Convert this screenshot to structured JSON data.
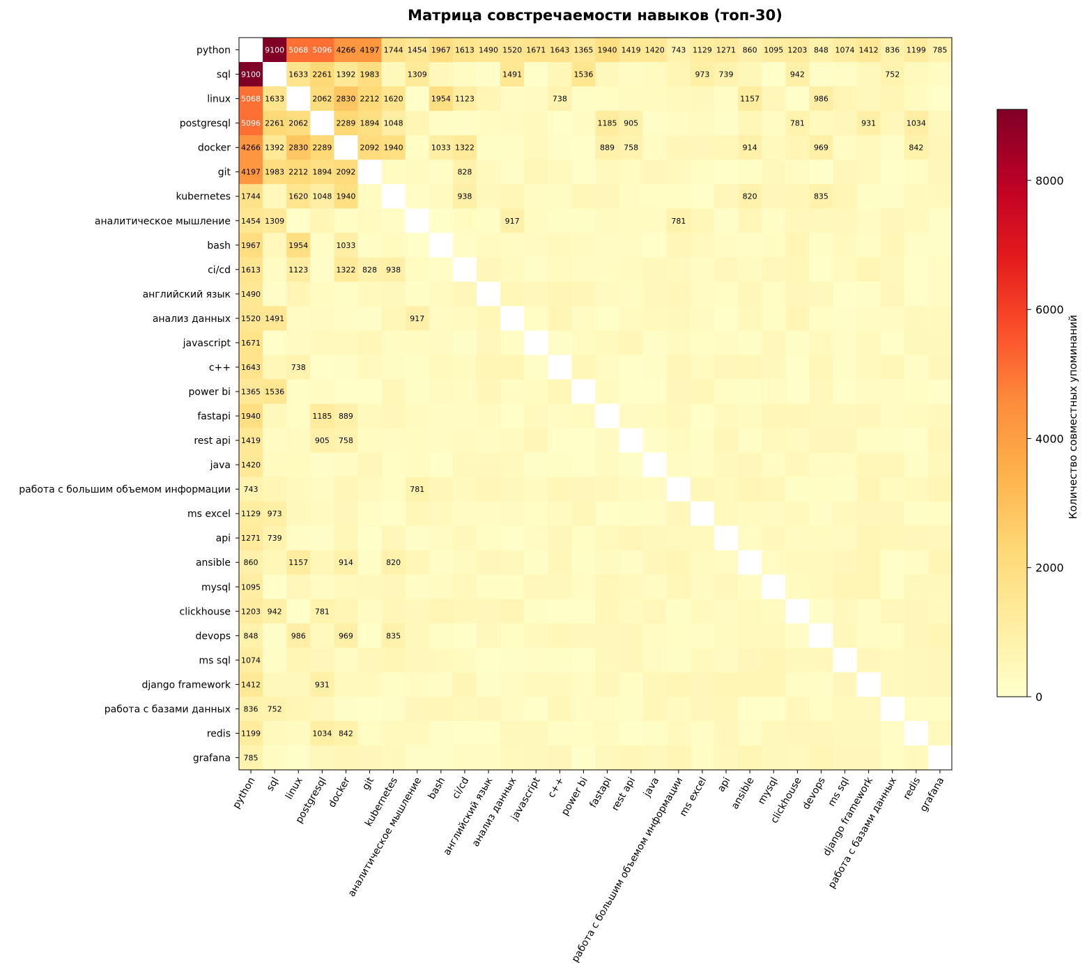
{
  "chart_data": {
    "type": "heatmap",
    "title": "Матрица совстречаемости навыков (топ-30)",
    "colorbar_label": "Количество совместных упоминаний",
    "colorbar_ticks": [
      0,
      2000,
      4000,
      6000,
      8000
    ],
    "colorbar_range": [
      0,
      9100
    ],
    "colormap": "YlOrRd",
    "diagonal": "blank",
    "labels": [
      "python",
      "sql",
      "linux",
      "postgresql",
      "docker",
      "git",
      "kubernetes",
      "аналитическое мышление",
      "bash",
      "ci/cd",
      "английский язык",
      "анализ данных",
      "javascript",
      "c++",
      "power bi",
      "fastapi",
      "rest api",
      "java",
      "работа с большим объемом информации",
      "ms excel",
      "api",
      "ansible",
      "mysql",
      "clickhouse",
      "devops",
      "ms sql",
      "django framework",
      "работа с базами данных",
      "redis",
      "grafana"
    ],
    "python_row": [
      null,
      9100,
      5068,
      5096,
      4266,
      4197,
      1744,
      1454,
      1967,
      1613,
      1490,
      1520,
      1671,
      1643,
      1365,
      1940,
      1419,
      1420,
      743,
      1129,
      1271,
      860,
      1095,
      1203,
      848,
      1074,
      1412,
      836,
      1199,
      785
    ],
    "pairs": [
      [
        1,
        2,
        1633
      ],
      [
        1,
        3,
        2261
      ],
      [
        1,
        4,
        1392
      ],
      [
        1,
        5,
        1983
      ],
      [
        1,
        7,
        1309
      ],
      [
        1,
        11,
        1491
      ],
      [
        1,
        14,
        1536
      ],
      [
        1,
        19,
        973
      ],
      [
        1,
        20,
        739
      ],
      [
        1,
        23,
        942
      ],
      [
        1,
        27,
        752
      ],
      [
        2,
        3,
        2062
      ],
      [
        2,
        4,
        2830
      ],
      [
        2,
        5,
        2212
      ],
      [
        2,
        6,
        1620
      ],
      [
        2,
        8,
        1954
      ],
      [
        2,
        9,
        1123
      ],
      [
        2,
        13,
        738
      ],
      [
        2,
        21,
        1157
      ],
      [
        2,
        24,
        986
      ],
      [
        3,
        4,
        2289
      ],
      [
        3,
        5,
        1894
      ],
      [
        3,
        6,
        1048
      ],
      [
        3,
        15,
        1185
      ],
      [
        3,
        16,
        905
      ],
      [
        3,
        23,
        781
      ],
      [
        3,
        26,
        931
      ],
      [
        3,
        28,
        1034
      ],
      [
        4,
        5,
        2092
      ],
      [
        4,
        6,
        1940
      ],
      [
        4,
        8,
        1033
      ],
      [
        4,
        9,
        1322
      ],
      [
        4,
        15,
        889
      ],
      [
        4,
        16,
        758
      ],
      [
        4,
        21,
        914
      ],
      [
        4,
        24,
        969
      ],
      [
        4,
        28,
        842
      ],
      [
        5,
        9,
        828
      ],
      [
        6,
        9,
        938
      ],
      [
        6,
        21,
        820
      ],
      [
        6,
        24,
        835
      ],
      [
        7,
        11,
        917
      ],
      [
        7,
        18,
        781
      ]
    ]
  }
}
